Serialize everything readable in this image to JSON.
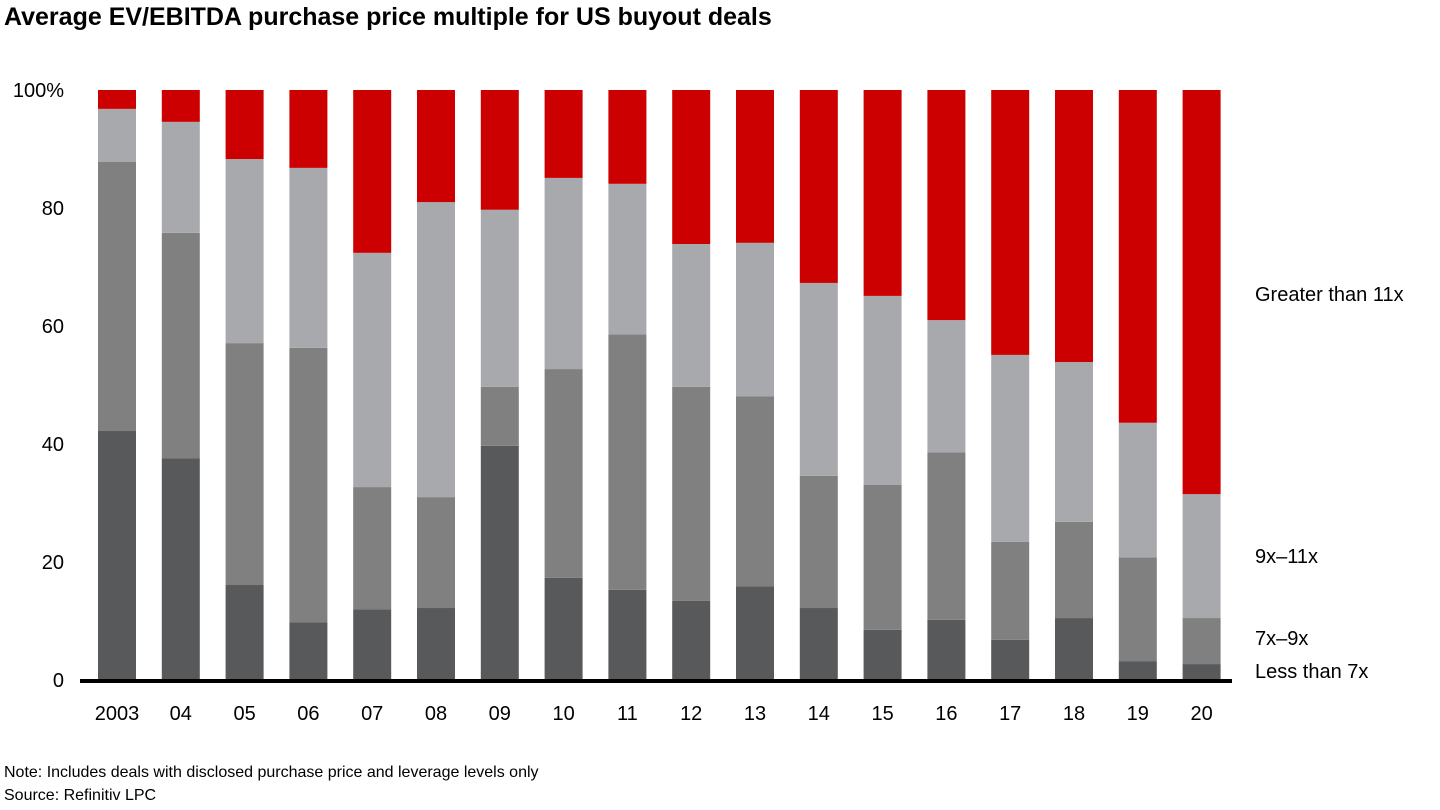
{
  "chart_data": {
    "type": "bar",
    "stacked": true,
    "title": "Average EV/EBITDA purchase price multiple for US buyout deals",
    "categories": [
      "2003",
      "04",
      "05",
      "06",
      "07",
      "08",
      "09",
      "10",
      "11",
      "12",
      "13",
      "14",
      "15",
      "16",
      "17",
      "18",
      "19",
      "20"
    ],
    "ylim": [
      0,
      100
    ],
    "yticks": [
      "0",
      "20",
      "40",
      "60",
      "80",
      "100%"
    ],
    "ytick_values": [
      0,
      20,
      40,
      60,
      80,
      100
    ],
    "grid": false,
    "legend_placement": "right (inline labels)",
    "series": [
      {
        "name": "Less than 7x",
        "color": "#58595b",
        "values": [
          42.2,
          37.6,
          16.1,
          9.8,
          12.0,
          12.2,
          39.7,
          17.3,
          15.3,
          13.4,
          15.9,
          12.2,
          8.5,
          10.2,
          6.8,
          10.5,
          3.2,
          2.7
        ]
      },
      {
        "name": "7x–9x",
        "color": "#808080",
        "values": [
          45.6,
          38.2,
          41.0,
          46.5,
          20.7,
          18.8,
          10.0,
          35.4,
          43.3,
          36.3,
          32.2,
          22.4,
          24.6,
          28.4,
          16.6,
          16.3,
          17.6,
          7.8
        ]
      },
      {
        "name": "9x–11x",
        "color": "#a7a9ac",
        "values": [
          9.0,
          18.8,
          31.2,
          30.5,
          39.7,
          50.0,
          30.0,
          32.4,
          25.5,
          24.2,
          26.0,
          32.7,
          32.0,
          22.4,
          31.7,
          27.1,
          22.8,
          21.0
        ]
      },
      {
        "name": "Greater than 11x",
        "color": "#cc0000",
        "values": [
          3.2,
          5.4,
          11.7,
          13.2,
          27.6,
          19.0,
          20.3,
          14.9,
          15.9,
          26.1,
          25.9,
          32.7,
          34.9,
          39.0,
          44.9,
          46.1,
          56.4,
          68.5
        ]
      }
    ]
  },
  "notes": {
    "note": "Note: Includes deals with disclosed purchase price and leverage levels only",
    "source": "Source: Refinitiv LPC"
  }
}
